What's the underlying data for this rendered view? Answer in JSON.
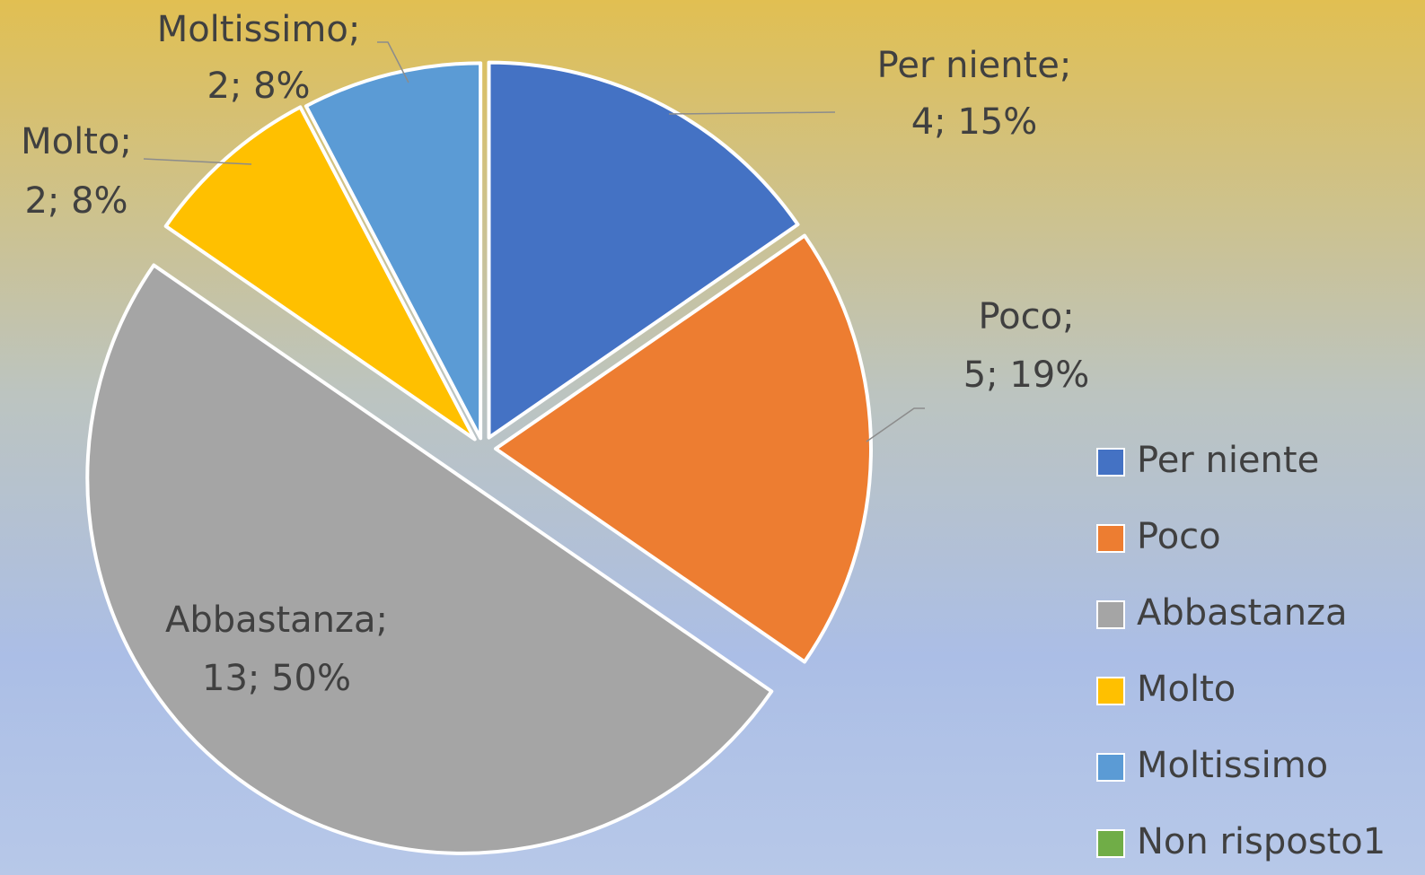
{
  "chart_data": {
    "type": "pie",
    "categories": [
      "Per niente",
      "Poco",
      "Abbastanza",
      "Molto",
      "Moltissimo",
      "Non risposto1"
    ],
    "values": [
      4,
      5,
      13,
      2,
      2,
      0
    ],
    "label_names": [
      "Per niente;",
      "Poco;",
      "Abbastanza;",
      "Molto;",
      "Moltissimo;",
      null
    ],
    "value_labels": [
      "4; 15%",
      "5; 19%",
      "13; 50%",
      "2; 8%",
      "2; 8%",
      null
    ],
    "colors": [
      "#4472c4",
      "#ed7d31",
      "#a5a5a5",
      "#ffc000",
      "#5b9bd5",
      "#70ad47"
    ],
    "legend": "right"
  }
}
